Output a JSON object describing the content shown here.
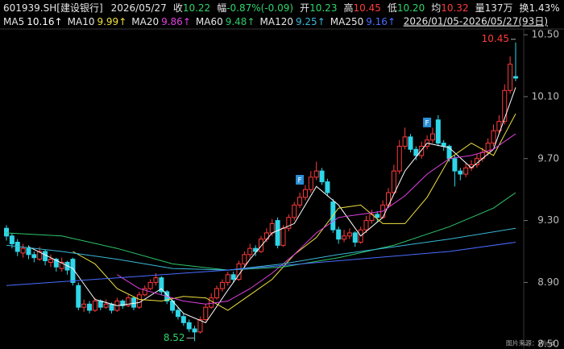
{
  "header": {
    "code": "601939.SH[建设银行]",
    "date": "2026/05/27",
    "items": [
      {
        "label": "收",
        "value": "10.22",
        "color": "#2fd66b"
      },
      {
        "label": "幅",
        "value": "-0.87%(-0.09)",
        "color": "#2fd66b"
      },
      {
        "label": "开",
        "value": "10.23",
        "color": "#2fd66b"
      },
      {
        "label": "高",
        "value": "10.45",
        "color": "#ff3b3b"
      },
      {
        "label": "低",
        "value": "10.20",
        "color": "#2fd66b"
      },
      {
        "label": "均",
        "value": "10.32",
        "color": "#ff3b3b"
      },
      {
        "label": "量",
        "value": "137万",
        "color": "#e6e6e6"
      },
      {
        "label": "换",
        "value": "1.43%",
        "color": "#e6e6e6"
      }
    ],
    "range": "2026/01/05-2026/05/27(93日)"
  },
  "chart_data": {
    "type": "candlestick",
    "candles": [
      [
        9.25,
        9.27,
        9.17,
        9.2
      ],
      [
        9.2,
        9.22,
        9.12,
        9.15
      ],
      [
        9.16,
        9.18,
        9.07,
        9.1
      ],
      [
        9.09,
        9.15,
        9.06,
        9.12
      ],
      [
        9.12,
        9.14,
        9.05,
        9.08
      ],
      [
        9.08,
        9.1,
        9.03,
        9.06
      ],
      [
        9.05,
        9.13,
        9.04,
        9.1
      ],
      [
        9.1,
        9.11,
        9.01,
        9.04
      ],
      [
        9.03,
        9.08,
        9,
        9.05
      ],
      [
        9.05,
        9.06,
        8.97,
        9
      ],
      [
        8.99,
        9.06,
        8.97,
        9.03
      ],
      [
        9.03,
        9.04,
        8.95,
        8.98
      ],
      [
        9.05,
        9.06,
        8.88,
        8.9
      ],
      [
        8.88,
        8.9,
        8.72,
        8.74
      ],
      [
        8.74,
        8.79,
        8.71,
        8.76
      ],
      [
        8.76,
        8.78,
        8.7,
        8.72
      ],
      [
        8.72,
        8.8,
        8.71,
        8.78
      ],
      [
        8.78,
        8.79,
        8.72,
        8.74
      ],
      [
        8.74,
        8.79,
        8.73,
        8.76
      ],
      [
        8.76,
        8.77,
        8.7,
        8.72
      ],
      [
        8.72,
        8.8,
        8.71,
        8.78
      ],
      [
        8.78,
        8.79,
        8.73,
        8.75
      ],
      [
        8.75,
        8.82,
        8.74,
        8.8
      ],
      [
        8.8,
        8.81,
        8.72,
        8.74
      ],
      [
        8.74,
        8.84,
        8.73,
        8.82
      ],
      [
        8.82,
        8.88,
        8.81,
        8.86
      ],
      [
        8.86,
        8.92,
        8.85,
        8.9
      ],
      [
        8.9,
        8.96,
        8.88,
        8.93
      ],
      [
        8.93,
        8.94,
        8.82,
        8.84
      ],
      [
        8.84,
        8.85,
        8.76,
        8.78
      ],
      [
        8.78,
        8.79,
        8.7,
        8.72
      ],
      [
        8.72,
        8.74,
        8.66,
        8.68
      ],
      [
        8.68,
        8.7,
        8.62,
        8.64
      ],
      [
        8.64,
        8.66,
        8.58,
        8.6
      ],
      [
        8.6,
        8.62,
        8.52,
        8.58
      ],
      [
        8.58,
        8.68,
        8.57,
        8.66
      ],
      [
        8.66,
        8.76,
        8.65,
        8.74
      ],
      [
        8.74,
        8.83,
        8.73,
        8.8
      ],
      [
        8.8,
        8.88,
        8.79,
        8.86
      ],
      [
        8.86,
        8.92,
        8.84,
        8.9
      ],
      [
        8.9,
        8.97,
        8.88,
        8.95
      ],
      [
        8.95,
        8.97,
        8.9,
        8.92
      ],
      [
        8.92,
        9.04,
        8.91,
        9.02
      ],
      [
        9.02,
        9.1,
        9,
        9.08
      ],
      [
        9.08,
        9.15,
        9.06,
        9.12
      ],
      [
        9.12,
        9.14,
        9.07,
        9.1
      ],
      [
        9.1,
        9.2,
        9.09,
        9.18
      ],
      [
        9.18,
        9.25,
        9.16,
        9.22
      ],
      [
        9.22,
        9.31,
        9.2,
        9.28
      ],
      [
        9.3,
        9.32,
        9.12,
        9.14
      ],
      [
        9.14,
        9.27,
        9.13,
        9.25
      ],
      [
        9.25,
        9.34,
        9.23,
        9.32
      ],
      [
        9.32,
        9.42,
        9.3,
        9.4
      ],
      [
        9.4,
        9.48,
        9.38,
        9.45
      ],
      [
        9.45,
        9.53,
        9.43,
        9.5
      ],
      [
        9.5,
        9.62,
        9.48,
        9.58
      ],
      [
        9.58,
        9.68,
        9.56,
        9.62
      ],
      [
        9.62,
        9.64,
        9.53,
        9.55
      ],
      [
        9.55,
        9.57,
        9.46,
        9.48
      ],
      [
        9.42,
        9.44,
        9.22,
        9.24
      ],
      [
        9.24,
        9.26,
        9.15,
        9.18
      ],
      [
        9.18,
        9.24,
        9.16,
        9.2
      ],
      [
        9.2,
        9.25,
        9.18,
        9.22
      ],
      [
        9.22,
        9.23,
        9.13,
        9.16
      ],
      [
        9.16,
        9.26,
        9.15,
        9.24
      ],
      [
        9.24,
        9.33,
        9.22,
        9.3
      ],
      [
        9.3,
        9.37,
        9.28,
        9.34
      ],
      [
        9.34,
        9.36,
        9.29,
        9.32
      ],
      [
        9.32,
        9.43,
        9.31,
        9.4
      ],
      [
        9.4,
        9.51,
        9.38,
        9.48
      ],
      [
        9.48,
        9.66,
        9.47,
        9.62
      ],
      [
        9.62,
        9.82,
        9.6,
        9.78
      ],
      [
        9.78,
        9.9,
        9.76,
        9.84
      ],
      [
        9.84,
        9.86,
        9.74,
        9.76
      ],
      [
        9.76,
        9.78,
        9.69,
        9.72
      ],
      [
        9.72,
        9.81,
        9.7,
        9.78
      ],
      [
        9.78,
        9.85,
        9.76,
        9.82
      ],
      [
        9.82,
        9.9,
        9.8,
        9.86
      ],
      [
        9.95,
        9.98,
        9.78,
        9.8
      ],
      [
        9.8,
        9.82,
        9.75,
        9.78
      ],
      [
        9.78,
        9.79,
        9.68,
        9.7
      ],
      [
        9.7,
        9.72,
        9.52,
        9.62
      ],
      [
        9.62,
        9.64,
        9.56,
        9.6
      ],
      [
        9.6,
        9.67,
        9.58,
        9.64
      ],
      [
        9.64,
        9.69,
        9.62,
        9.66
      ],
      [
        9.66,
        9.73,
        9.64,
        9.7
      ],
      [
        9.7,
        9.77,
        9.68,
        9.74
      ],
      [
        9.74,
        9.83,
        9.72,
        9.8
      ],
      [
        9.8,
        9.92,
        9.78,
        9.88
      ],
      [
        9.88,
        9.98,
        9.86,
        9.94
      ],
      [
        9.94,
        10.18,
        9.92,
        10.14
      ],
      [
        10.14,
        10.36,
        10.12,
        10.31
      ],
      [
        10.23,
        10.45,
        10.2,
        10.22
      ]
    ],
    "up_color": "#ff3b3b",
    "down_color": "#2fd6e8",
    "series": [
      {
        "name": "MA5",
        "value_label": "10.16↑",
        "color": "#ffffff",
        "x": [
          4,
          8,
          12,
          16,
          20,
          24,
          28,
          32,
          36,
          40,
          44,
          48,
          52,
          56,
          60,
          64,
          68,
          72,
          76,
          80,
          84,
          88,
          92
        ],
        "values": [
          9.13,
          9.06,
          8.99,
          8.79,
          8.75,
          8.77,
          8.86,
          8.7,
          8.64,
          8.85,
          9.05,
          9.22,
          9.28,
          9.52,
          9.4,
          9.2,
          9.32,
          9.62,
          9.8,
          9.77,
          9.64,
          9.76,
          10.16
        ]
      },
      {
        "name": "MA10",
        "value_label": "9.99↑",
        "color": "#f0e040",
        "x": [
          12,
          16,
          20,
          24,
          28,
          32,
          36,
          40,
          44,
          48,
          52,
          56,
          60,
          64,
          68,
          72,
          76,
          80,
          84,
          88,
          92
        ],
        "values": [
          9.1,
          9.02,
          8.86,
          8.79,
          8.78,
          8.81,
          8.8,
          8.72,
          8.82,
          8.92,
          9.08,
          9.19,
          9.38,
          9.4,
          9.28,
          9.28,
          9.45,
          9.7,
          9.8,
          9.72,
          9.99
        ]
      },
      {
        "name": "MA20",
        "value_label": "9.86↑",
        "color": "#e040e0",
        "x": [
          20,
          24,
          28,
          32,
          36,
          40,
          44,
          48,
          52,
          56,
          60,
          64,
          68,
          72,
          76,
          80,
          84,
          88,
          92
        ],
        "values": [
          8.95,
          8.86,
          8.82,
          8.78,
          8.76,
          8.78,
          8.86,
          8.96,
          9.08,
          9.22,
          9.32,
          9.34,
          9.36,
          9.46,
          9.6,
          9.7,
          9.72,
          9.76,
          9.86
        ]
      },
      {
        "name": "MA60",
        "value_label": "9.48↑",
        "color": "#2fc76a",
        "x": [
          0,
          10,
          20,
          30,
          40,
          50,
          60,
          70,
          80,
          88,
          92
        ],
        "values": [
          9.22,
          9.2,
          9.12,
          9.02,
          8.98,
          9,
          9.06,
          9.14,
          9.26,
          9.38,
          9.48
        ]
      },
      {
        "name": "MA120",
        "value_label": "9.25↑",
        "color": "#3ab8d8",
        "x": [
          0,
          10,
          20,
          30,
          40,
          50,
          60,
          70,
          80,
          92
        ],
        "values": [
          9.14,
          9.1,
          9.05,
          8.99,
          8.98,
          9.02,
          9.08,
          9.13,
          9.18,
          9.25
        ]
      },
      {
        "name": "MA250",
        "value_label": "9.16↑",
        "color": "#4a6cff",
        "x": [
          0,
          20,
          40,
          60,
          80,
          92
        ],
        "values": [
          8.88,
          8.93,
          8.98,
          9.04,
          9.1,
          9.16
        ]
      }
    ],
    "markers": [
      {
        "text": "F",
        "index": 53
      },
      {
        "text": "F",
        "index": 76
      }
    ],
    "ylim": [
      8.47,
      10.61
    ],
    "yticks": [
      {
        "value": 10.5,
        "label": "10.50"
      },
      {
        "value": 10.1,
        "label": "10.10"
      },
      {
        "value": 9.7,
        "label": "9.70"
      },
      {
        "value": 9.3,
        "label": "9.30"
      },
      {
        "value": 8.9,
        "label": "8.90"
      },
      {
        "value": 8.5,
        "label": "8.50"
      }
    ]
  },
  "source": "图片来源：Wind"
}
